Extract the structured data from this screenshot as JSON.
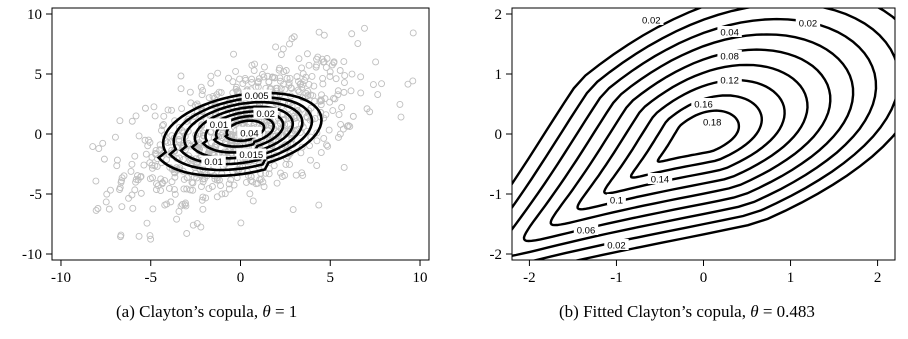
{
  "captions": {
    "a": {
      "prefix": "(a)  Clayton’s copula, ",
      "theta": "θ",
      "suffix": " = 1"
    },
    "b": {
      "prefix": "(b)  Fitted Clayton’s copula, ",
      "theta": "θ",
      "suffix": " = 0.483"
    }
  },
  "chart_data": [
    {
      "type": "contour",
      "xlim": [
        -10.5,
        10.5
      ],
      "ylim": [
        -10.5,
        10.5
      ],
      "xticks": [
        -10,
        -5,
        0,
        5,
        10
      ],
      "yticks": [
        -10,
        -5,
        0,
        5,
        10
      ],
      "grid": false,
      "scatter": {
        "n": 800,
        "color": "#bfbfbf",
        "marker": "open-circle"
      },
      "contour_levels": [
        0.005,
        0.01,
        0.015,
        0.02,
        0.025,
        0.03,
        0.04
      ],
      "contour_labels": [
        {
          "text": "0.005",
          "x": 0.9,
          "y": 3.2
        },
        {
          "text": "0.01",
          "x": -1.5,
          "y": -2.3
        },
        {
          "text": "0.015",
          "x": 0.6,
          "y": -1.7
        },
        {
          "text": "0.02",
          "x": 1.4,
          "y": 1.7
        },
        {
          "text": "0.01",
          "x": -1.2,
          "y": 0.8
        },
        {
          "text": "0.04",
          "x": 0.5,
          "y": 0.1
        }
      ]
    },
    {
      "type": "contour",
      "xlim": [
        -2.2,
        2.2
      ],
      "ylim": [
        -2.1,
        2.1
      ],
      "xticks": [
        -2,
        -1,
        0,
        1,
        2
      ],
      "yticks": [
        -2,
        -1,
        0,
        1,
        2
      ],
      "grid": false,
      "contour_levels": [
        0.02,
        0.04,
        0.06,
        0.08,
        0.1,
        0.12,
        0.14,
        0.16,
        0.18
      ],
      "contour_labels": [
        {
          "text": "0.02",
          "x": -0.6,
          "y": 1.9
        },
        {
          "text": "0.04",
          "x": 0.3,
          "y": 1.7
        },
        {
          "text": "0.02",
          "x": 1.2,
          "y": 1.85
        },
        {
          "text": "0.08",
          "x": 0.3,
          "y": 1.3
        },
        {
          "text": "0.12",
          "x": 0.3,
          "y": 0.9
        },
        {
          "text": "0.16",
          "x": 0.0,
          "y": 0.5
        },
        {
          "text": "0.18",
          "x": 0.1,
          "y": 0.2
        },
        {
          "text": "0.14",
          "x": -0.5,
          "y": -0.75
        },
        {
          "text": "0.1",
          "x": -1.0,
          "y": -1.1
        },
        {
          "text": "0.06",
          "x": -1.35,
          "y": -1.6
        },
        {
          "text": "0.02",
          "x": -1.0,
          "y": -1.85
        }
      ]
    }
  ]
}
